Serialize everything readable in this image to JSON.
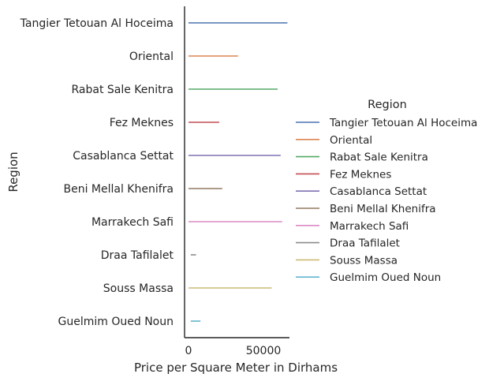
{
  "chart_data": {
    "type": "line",
    "xlabel": "Price per Square Meter in Dirhams",
    "ylabel": "Region",
    "xlim": [
      -3000,
      62000
    ],
    "xticks": [
      0,
      50000
    ],
    "xtick_labels": [
      "0",
      "50000"
    ],
    "grid": false,
    "legend_position": "right",
    "legend_title": "Region",
    "categories": [
      "Tangier Tetouan Al Hoceima",
      "Oriental",
      "Rabat Sale Kenitra",
      "Fez Meknes",
      "Casablanca Settat",
      "Beni Mellal Khenifra",
      "Marrakech Safi",
      "Draa Tafilalet",
      "Souss Massa",
      "Guelmim Oued Noun"
    ],
    "series": [
      {
        "name": "Tangier Tetouan Al Hoceima",
        "color": "#4c72b0",
        "x": [
          0,
          66000
        ]
      },
      {
        "name": "Oriental",
        "color": "#dd8452",
        "x": [
          0,
          33000
        ]
      },
      {
        "name": "Rabat Sale Kenitra",
        "color": "#55a868",
        "x": [
          0,
          59500
        ]
      },
      {
        "name": "Fez Meknes",
        "color": "#c44e52",
        "x": [
          0,
          20500
        ]
      },
      {
        "name": "Casablanca Settat",
        "color": "#8172b3",
        "x": [
          0,
          61500
        ]
      },
      {
        "name": "Beni Mellal Khenifra",
        "color": "#937860",
        "x": [
          0,
          22500
        ]
      },
      {
        "name": "Marrakech Safi",
        "color": "#da8bc3",
        "x": [
          0,
          62500
        ]
      },
      {
        "name": "Draa Tafilalet",
        "color": "#8c8c8c",
        "x": [
          1500,
          5000
        ]
      },
      {
        "name": "Souss Massa",
        "color": "#ccb974",
        "x": [
          0,
          55500
        ]
      },
      {
        "name": "Guelmim Oued Noun",
        "color": "#64b5cd",
        "x": [
          1500,
          8000
        ]
      }
    ]
  }
}
